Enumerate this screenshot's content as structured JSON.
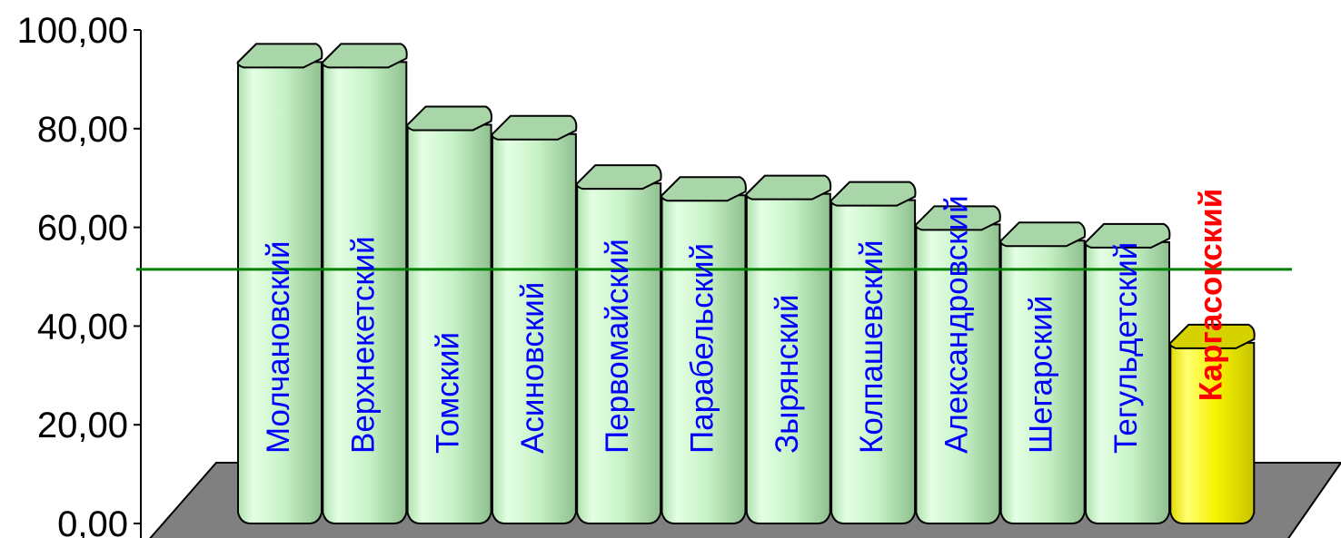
{
  "chart_data": {
    "type": "bar",
    "categories": [
      "Молчановский",
      "Верхнекетский",
      "Томский",
      "Асиновский",
      "Первомайский",
      "Парабельский",
      "Зырянский",
      "Колпашевский",
      "Александровский",
      "Шегарский",
      "Тегульдетский",
      "Каргасокский"
    ],
    "values": [
      93.5,
      93.5,
      80.8,
      78.9,
      68.9,
      66.5,
      66.8,
      65.5,
      60.6,
      57.3,
      57.0,
      36.6
    ],
    "ylim": [
      0,
      100
    ],
    "yticks": [
      "0,00",
      "20,00",
      "40,00",
      "60,00",
      "80,00",
      "100,00"
    ],
    "reference_line": 51.5,
    "highlight_category": "Каргасокский",
    "colors": {
      "bar": "#c6f2c6",
      "bar_shadow": "#8fbf8f",
      "bar_top": "#a9d6a9",
      "highlight": "#f6f200",
      "highlight_top": "#d6d200",
      "label": "#0000ff",
      "highlight_label": "#ff0000",
      "floor": "#808080",
      "reference_line": "#008000"
    }
  }
}
